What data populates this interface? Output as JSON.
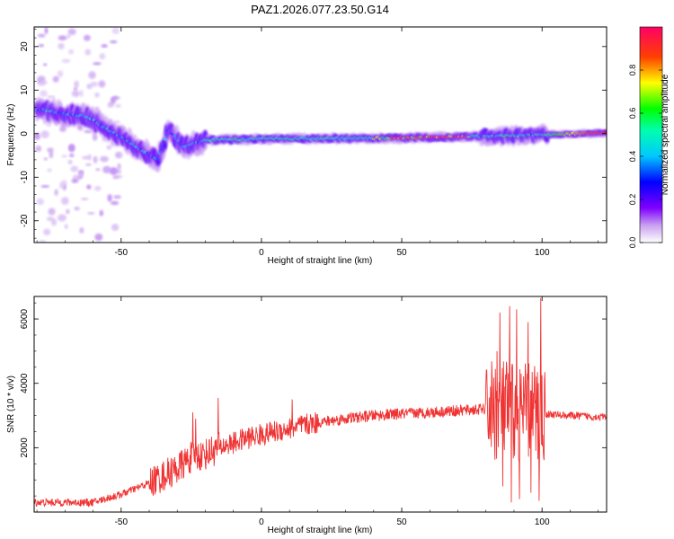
{
  "title": "PAZ1.2026.077.23.50.G14",
  "chart_data": [
    {
      "type": "heatmap",
      "xlabel": "Height of straight line (km)",
      "ylabel": "Frequency (Hz)",
      "xlim": [
        -81,
        123
      ],
      "ylim": [
        -25,
        24.5
      ],
      "xticks": [
        -50,
        0,
        50,
        100
      ],
      "yticks": [
        -20,
        -10,
        0,
        10,
        20
      ],
      "colorbar": {
        "label": "Normalized spectral amplitude",
        "range": [
          0,
          1
        ],
        "ticks": [
          0.0,
          0.2,
          0.4,
          0.6,
          0.8
        ],
        "colormap": "rainbow: #ffffff → #a020f0 → #0000ff → #00ffff → #00ff00 → #ffff00 → #ff0000 → #ff0066"
      },
      "ridge_center_hz": [
        {
          "x": -78,
          "y": 5.5
        },
        {
          "x": -70,
          "y": 4.5
        },
        {
          "x": -62,
          "y": 4
        },
        {
          "x": -55,
          "y": 1
        },
        {
          "x": -48,
          "y": -1.5
        },
        {
          "x": -42,
          "y": -4
        },
        {
          "x": -37,
          "y": -6
        },
        {
          "x": -33,
          "y": 1
        },
        {
          "x": -28,
          "y": -3
        },
        {
          "x": -20,
          "y": -1.5
        },
        {
          "x": 0,
          "y": -1.2
        },
        {
          "x": 50,
          "y": -1
        },
        {
          "x": 100,
          "y": -0.3
        },
        {
          "x": 123,
          "y": 0.2
        }
      ]
    },
    {
      "type": "line",
      "xlabel": "Height of straight line (km)",
      "ylabel": "SNR (10 * v/v)",
      "xlim": [
        -81,
        123
      ],
      "ylim": [
        0,
        6700
      ],
      "xticks": [
        -50,
        0,
        50,
        100
      ],
      "yticks": [
        2000,
        4000,
        6000
      ],
      "series_color": "#f03232",
      "envelope": [
        {
          "x": -81,
          "y": 300
        },
        {
          "x": -60,
          "y": 300
        },
        {
          "x": -50,
          "y": 550
        },
        {
          "x": -40,
          "y": 900
        },
        {
          "x": -30,
          "y": 1350
        },
        {
          "x": -25,
          "y": 1700
        },
        {
          "x": -20,
          "y": 1800
        },
        {
          "x": -15,
          "y": 2000
        },
        {
          "x": -10,
          "y": 2150
        },
        {
          "x": -5,
          "y": 2300
        },
        {
          "x": 0,
          "y": 2400
        },
        {
          "x": 10,
          "y": 2600
        },
        {
          "x": 20,
          "y": 2780
        },
        {
          "x": 30,
          "y": 2900
        },
        {
          "x": 40,
          "y": 3000
        },
        {
          "x": 50,
          "y": 3050
        },
        {
          "x": 60,
          "y": 3100
        },
        {
          "x": 70,
          "y": 3150
        },
        {
          "x": 80,
          "y": 3200
        },
        {
          "x": 100,
          "y": 3050
        },
        {
          "x": 110,
          "y": 3000
        },
        {
          "x": 123,
          "y": 2950
        }
      ],
      "spikes": [
        {
          "x": -24.5,
          "y": 3100
        },
        {
          "x": -23.5,
          "y": 2900
        },
        {
          "x": -15.5,
          "y": 3550
        },
        {
          "x": 11,
          "y": 3500
        },
        {
          "x": 84,
          "y": 5000
        },
        {
          "x": 85,
          "y": 6200
        },
        {
          "x": 88.5,
          "y": 6400
        },
        {
          "x": 91,
          "y": 6300
        },
        {
          "x": 95,
          "y": 5900
        },
        {
          "x": 99.5,
          "y": 6650
        }
      ],
      "dips": [
        {
          "x": 86,
          "y": 800
        },
        {
          "x": 89,
          "y": 300
        },
        {
          "x": 92,
          "y": 400
        },
        {
          "x": 96,
          "y": 600
        },
        {
          "x": 99,
          "y": 350
        }
      ]
    }
  ]
}
